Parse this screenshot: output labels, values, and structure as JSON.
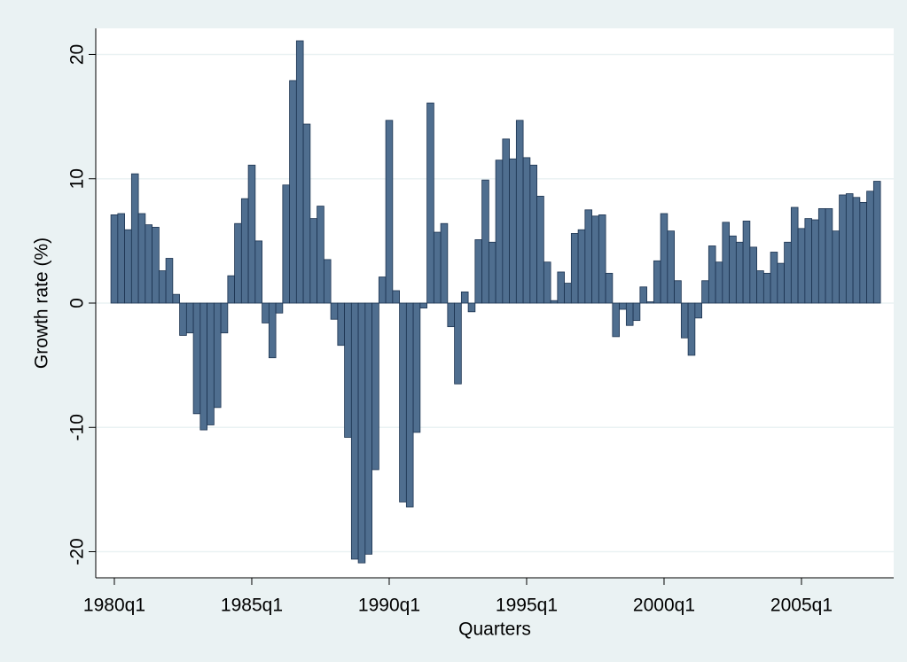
{
  "chart_data": {
    "type": "bar",
    "y_label": "Growth rate (%)",
    "x_label": "Quarters",
    "color": "#4f6e8f",
    "edge_color": "#1c3350",
    "grid": true,
    "ylim": [
      -22.1,
      22.1
    ],
    "yticks": [
      -20,
      -10,
      0,
      10,
      20
    ],
    "categories": [
      "1980q1",
      null,
      null,
      null,
      null,
      null,
      null,
      null,
      null,
      null,
      null,
      null,
      null,
      null,
      null,
      null,
      null,
      null,
      null,
      null,
      "1985q1",
      null,
      null,
      null,
      null,
      null,
      null,
      null,
      null,
      null,
      null,
      null,
      null,
      null,
      null,
      null,
      null,
      null,
      null,
      null,
      "1990q1",
      null,
      null,
      null,
      null,
      null,
      null,
      null,
      null,
      null,
      null,
      null,
      null,
      null,
      null,
      null,
      null,
      null,
      null,
      null,
      "1995q1",
      null,
      null,
      null,
      null,
      null,
      null,
      null,
      null,
      null,
      null,
      null,
      null,
      null,
      null,
      null,
      null,
      null,
      null,
      null,
      "2000q1",
      null,
      null,
      null,
      null,
      null,
      null,
      null,
      null,
      null,
      null,
      null,
      null,
      null,
      null,
      null,
      null,
      null,
      null,
      null,
      "2005q1",
      null,
      null,
      null,
      null,
      null,
      null,
      null,
      null,
      null,
      null,
      null
    ],
    "values": [
      7.1,
      7.2,
      5.9,
      10.4,
      7.2,
      6.3,
      6.1,
      2.6,
      3.6,
      0.7,
      -2.6,
      -2.4,
      -8.9,
      -10.2,
      -9.8,
      -8.4,
      -2.4,
      2.2,
      6.4,
      8.4,
      11.1,
      5.0,
      -1.6,
      -4.4,
      -0.8,
      9.5,
      17.9,
      21.1,
      14.4,
      6.8,
      7.8,
      3.5,
      -1.3,
      -3.4,
      -10.8,
      -20.6,
      -20.9,
      -20.2,
      -13.4,
      2.1,
      14.7,
      1.0,
      -16.0,
      -16.4,
      -10.4,
      -0.4,
      16.1,
      5.7,
      6.4,
      -1.9,
      -6.5,
      0.9,
      -0.7,
      5.1,
      9.9,
      4.9,
      11.5,
      13.2,
      11.6,
      14.7,
      11.7,
      11.1,
      8.6,
      3.3,
      0.2,
      2.5,
      1.6,
      5.6,
      5.9,
      7.5,
      7.0,
      7.1,
      2.4,
      -2.7,
      -0.5,
      -1.8,
      -1.4,
      1.3,
      0.1,
      3.4,
      7.2,
      5.8,
      1.8,
      -2.8,
      -4.2,
      -1.2,
      1.8,
      4.6,
      3.3,
      6.5,
      5.4,
      4.9,
      6.6,
      4.5,
      2.6,
      2.4,
      4.1,
      3.2,
      4.9,
      7.7,
      6.0,
      6.8,
      6.7,
      7.6,
      7.6,
      5.8,
      8.7,
      8.8,
      8.5,
      8.1,
      9.0,
      9.8
    ]
  }
}
